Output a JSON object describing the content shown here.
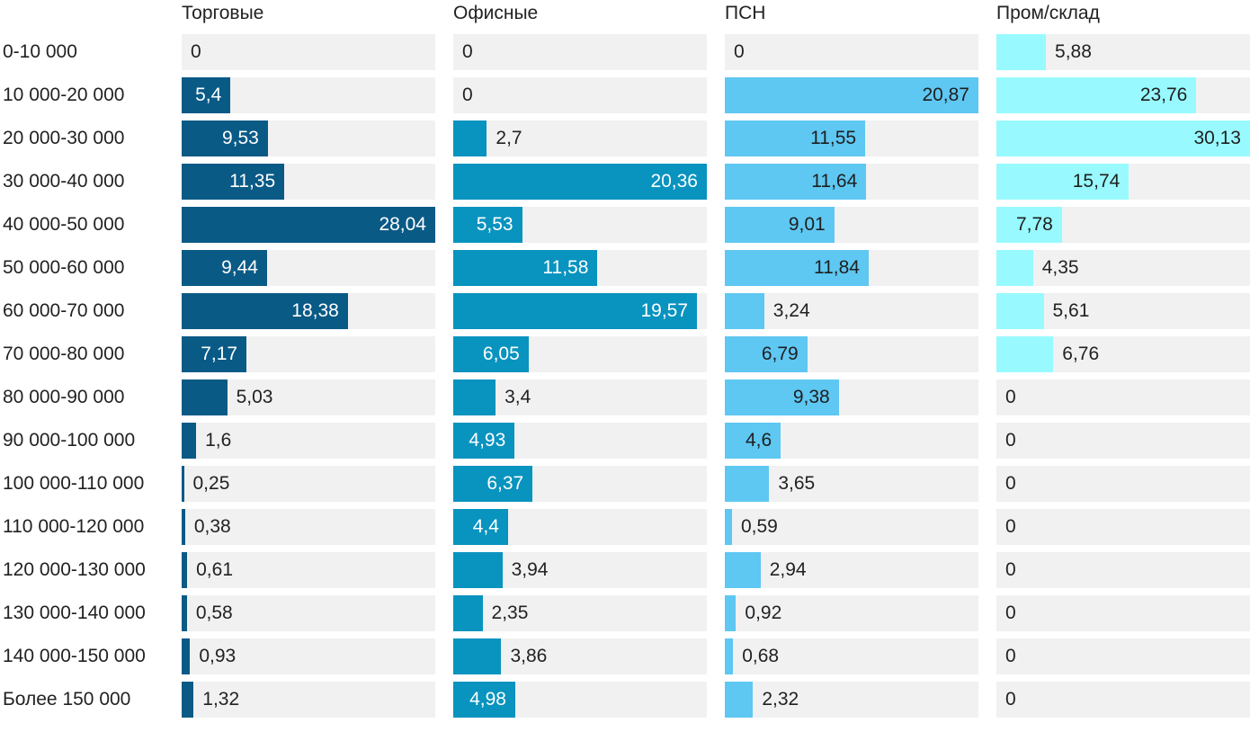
{
  "chart_data": {
    "type": "bar",
    "orientation": "horizontal",
    "layout": "small-multiples",
    "categories": [
      "0-10 000",
      "10 000-20 000",
      "20 000-30 000",
      "30 000-40 000",
      "40 000-50 000",
      "50 000-60 000",
      "60 000-70 000",
      "70 000-80 000",
      "80 000-90 000",
      "90 000-100 000",
      "100 000-110 000",
      "110 000-120 000",
      "120 000-130 000",
      "130 000-140 000",
      "140 000-150 000",
      "Более 150 000"
    ],
    "series": [
      {
        "name": "Торговые",
        "color": "#0a5a86",
        "label_color": "#ffffff",
        "values": [
          0,
          5.4,
          9.53,
          11.35,
          28.04,
          9.44,
          18.38,
          7.17,
          5.03,
          1.6,
          0.25,
          0.38,
          0.61,
          0.58,
          0.93,
          1.32
        ],
        "labels": [
          "0",
          "5,4",
          "9,53",
          "11,35",
          "28,04",
          "9,44",
          "18,38",
          "7,17",
          "5,03",
          "1,6",
          "0,25",
          "0,38",
          "0,61",
          "0,58",
          "0,93",
          "1,32"
        ]
      },
      {
        "name": "Офисные",
        "color": "#0993bf",
        "label_color": "#ffffff",
        "values": [
          0,
          0,
          2.7,
          20.36,
          5.53,
          11.58,
          19.57,
          6.05,
          3.4,
          4.93,
          6.37,
          4.4,
          3.94,
          2.35,
          3.86,
          4.98
        ],
        "labels": [
          "0",
          "0",
          "2,7",
          "20,36",
          "5,53",
          "11,58",
          "19,57",
          "6,05",
          "3,4",
          "4,93",
          "6,37",
          "4,4",
          "3,94",
          "2,35",
          "3,86",
          "4,98"
        ]
      },
      {
        "name": "ПСН",
        "color": "#5ec7f2",
        "label_color": "#1f1f1f",
        "values": [
          0,
          20.87,
          11.55,
          11.64,
          9.01,
          11.84,
          3.24,
          6.79,
          9.38,
          4.6,
          3.65,
          0.59,
          2.94,
          0.92,
          0.68,
          2.32
        ],
        "labels": [
          "0",
          "20,87",
          "11,55",
          "11,64",
          "9,01",
          "11,84",
          "3,24",
          "6,79",
          "9,38",
          "4,6",
          "3,65",
          "0,59",
          "2,94",
          "0,92",
          "0,68",
          "2,32"
        ]
      },
      {
        "name": "Пром/склад",
        "color": "#98fafe",
        "label_color": "#1f1f1f",
        "values": [
          5.88,
          23.76,
          30.13,
          15.74,
          7.78,
          4.35,
          5.61,
          6.76,
          0,
          0,
          0,
          0,
          0,
          0,
          0,
          0
        ],
        "labels": [
          "5,88",
          "23,76",
          "30,13",
          "15,74",
          "7,78",
          "4,35",
          "5,61",
          "6,76",
          "0",
          "0",
          "0",
          "0",
          "0",
          "0",
          "0",
          "0"
        ]
      }
    ],
    "xlim": [
      [
        0,
        28.04
      ],
      [
        0,
        20.36
      ],
      [
        0,
        20.87
      ],
      [
        0,
        30.13
      ]
    ],
    "background_bar_color": "#f1f1f1",
    "grid": false,
    "legend": "none"
  }
}
